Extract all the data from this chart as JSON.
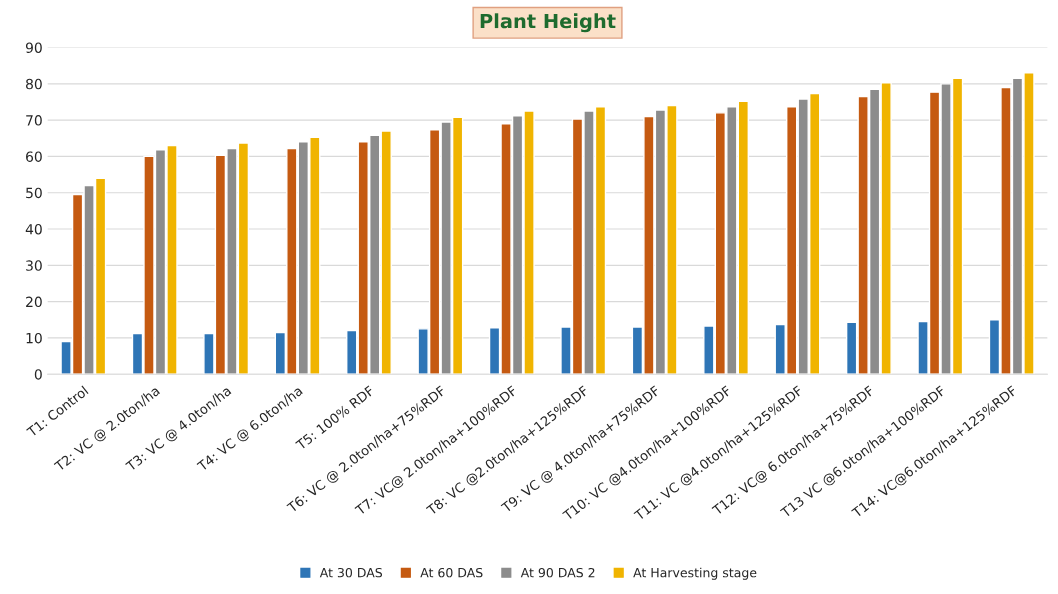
{
  "chart_data": {
    "type": "bar",
    "title": "Plant Height",
    "categories": [
      "T1: Control",
      "T2: VC @ 2.0ton/ha",
      "T3: VC @ 4.0ton/ha",
      "T4: VC @ 6.0ton/ha",
      "T5: 100% RDF",
      "T6: VC @ 2.0ton/ha+75%RDF",
      "T7: VC@ 2.0ton/ha+100%RDF",
      "T8: VC @2.0ton/ha+125%RDF",
      "T9: VC @ 4.0ton/ha+75%RDF",
      "T10: VC @4.0ton/ha+100%RDF",
      "T11: VC @4.0ton/ha+125%RDF",
      "T12: VC@ 6.0ton/ha+75%RDF",
      "T13 VC @6.0ton/ha+100%RDF",
      "T14: VC@6.0ton/ha+125%RDF"
    ],
    "series": [
      {
        "name": "At 30 DAS",
        "color": "#2e75b6",
        "values": [
          9,
          11.2,
          11.2,
          11.5,
          12,
          12.5,
          12.8,
          13,
          13,
          13.3,
          13.7,
          14.3,
          14.5,
          15
        ]
      },
      {
        "name": "At 60 DAS",
        "color": "#c55a11",
        "values": [
          49.5,
          60,
          60.3,
          62.2,
          64,
          67.3,
          69,
          70.3,
          71,
          72,
          73.7,
          76.5,
          77.7,
          79
        ]
      },
      {
        "name": "At 90 DAS 2",
        "color": "#8c8c8c",
        "values": [
          52,
          61.8,
          62.2,
          64,
          65.8,
          69.5,
          71.2,
          72.5,
          72.8,
          73.7,
          75.8,
          78.5,
          80,
          81.5
        ]
      },
      {
        "name": "At Harvesting stage",
        "color": "#f0b400",
        "values": [
          54,
          63,
          63.7,
          65.3,
          67,
          70.8,
          72.5,
          73.7,
          74,
          75.2,
          77.3,
          80.3,
          81.5,
          83
        ]
      }
    ],
    "ylim": [
      0,
      90
    ],
    "yticks": [
      0,
      10,
      20,
      30,
      40,
      50,
      60,
      70,
      80,
      90
    ],
    "grid": "y",
    "legend": "bottom"
  }
}
